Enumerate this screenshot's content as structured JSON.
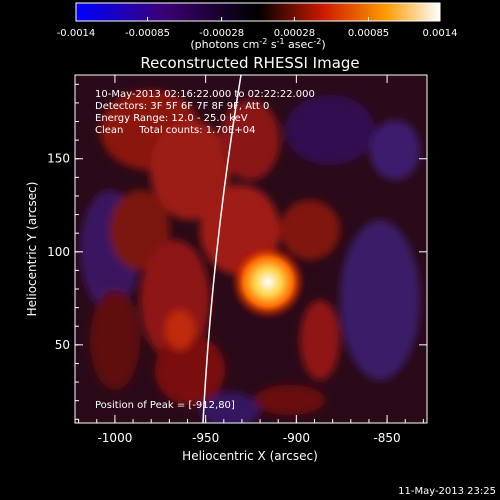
{
  "colorbar": {
    "ticks": [
      "-0.0014",
      "-0.00085",
      "-0.00028",
      "0.00028",
      "0.00085",
      "0.0014"
    ],
    "tick_values": [
      -0.0014,
      -0.00085,
      -0.00028,
      0.00028,
      0.00085,
      0.0014
    ],
    "range": [
      -0.0014,
      0.0014
    ],
    "units_prefix": "(photons cm",
    "units_exp1": "-2",
    "units_mid": " s",
    "units_exp2": "-1",
    "units_mid2": " asec",
    "units_exp3": "-2",
    "units_suffix": ")",
    "colors": [
      "#0000ff",
      "#3a0070",
      "#000000",
      "#cc1a00",
      "#ff9a00",
      "#ffffff"
    ]
  },
  "title": "Reconstructed RHESSI Image",
  "info": {
    "line1": "10-May-2013 02:16:22.000 to 02:22:22.000",
    "line2": "Detectors: 3F 5F 6F 7F 8F 9F, Att 0",
    "line3": "Energy Range: 12.0 - 25.0 keV",
    "line4": "Clean     Total counts: 1.70E+04"
  },
  "peak_label": "Position of Peak = [-912,80]",
  "peak": {
    "x": -912,
    "y": 80
  },
  "axes": {
    "xlabel": "Heliocentric X (arcsec)",
    "ylabel": "Heliocentric Y (arcsec)",
    "xticks": [
      "-1000",
      "-950",
      "-900",
      "-850"
    ],
    "xtick_values": [
      -1000,
      -950,
      -900,
      -850
    ],
    "yticks": [
      "50",
      "100",
      "150"
    ],
    "ytick_values": [
      50,
      100,
      150
    ],
    "xlim": [
      -1022,
      -828
    ],
    "ylim": [
      8,
      195
    ]
  },
  "footer_timestamp": "11-May-2013 23:25"
}
